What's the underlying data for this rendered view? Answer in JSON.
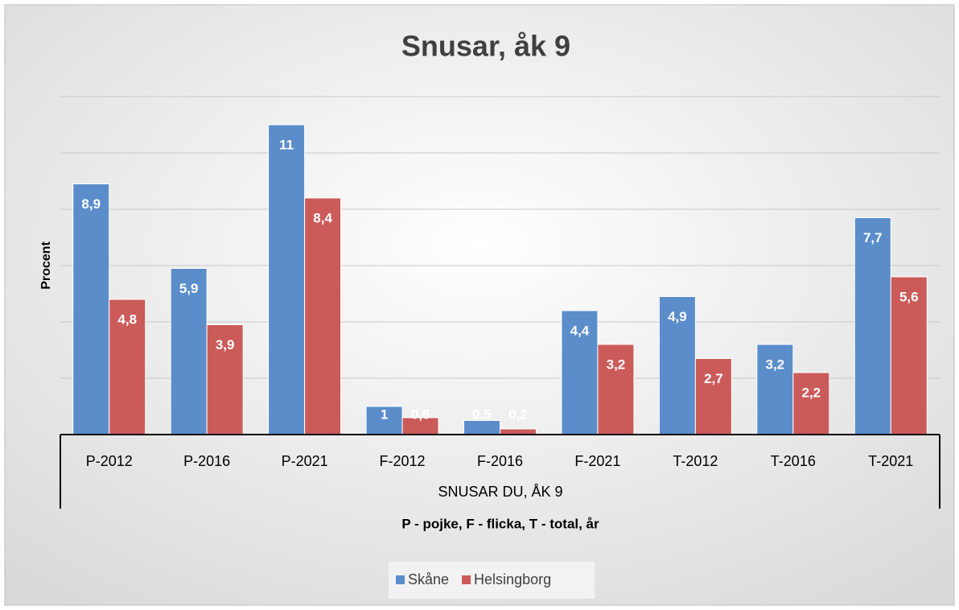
{
  "chart_data": {
    "type": "bar",
    "title": "Snusar, åk 9",
    "x_label": "SNUSAR DU, ÅK 9",
    "x_sublabel": "P - pojke, F - flicka, T - total, år",
    "y_label": "Procent",
    "categories": [
      "P-2012",
      "P-2016",
      "P-2021",
      "F-2012",
      "F-2016",
      "F-2021",
      "T-2012",
      "T-2016",
      "T-2021"
    ],
    "series": [
      {
        "name": "Skåne",
        "color": "#5b8dcb",
        "values": [
          8.9,
          5.9,
          11,
          1,
          0.5,
          4.4,
          4.9,
          3.2,
          7.7
        ],
        "value_labels": [
          "8,9",
          "5,9",
          "11",
          "1",
          "0,5",
          "4,4",
          "4,9",
          "3,2",
          "7,7"
        ]
      },
      {
        "name": "Helsingborg",
        "color": "#cb5b59",
        "values": [
          4.8,
          3.9,
          8.4,
          0.6,
          0.2,
          3.2,
          2.7,
          2.2,
          5.6
        ],
        "value_labels": [
          "4,8",
          "3,9",
          "8,4",
          "0,6",
          "0,2",
          "3,2",
          "2,7",
          "2,2",
          "5,6"
        ]
      }
    ],
    "ylim": [
      0,
      12
    ],
    "yticks": [
      0,
      2,
      4,
      6,
      8,
      10,
      12
    ],
    "grid": true,
    "legend": "bottom"
  }
}
